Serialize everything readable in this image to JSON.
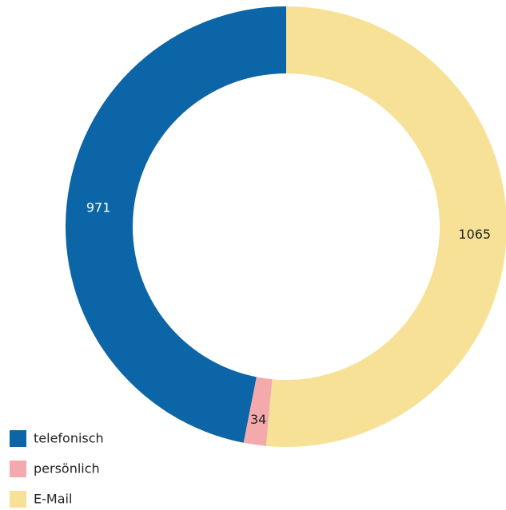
{
  "chart_data": {
    "type": "donut",
    "categories": [
      "telefonisch",
      "persönlich",
      "E-Mail"
    ],
    "values": [
      971,
      34,
      1065
    ],
    "colors": [
      "#0b65a7",
      "#f4a9ad",
      "#f7e196"
    ],
    "legend": "bottom-left"
  }
}
